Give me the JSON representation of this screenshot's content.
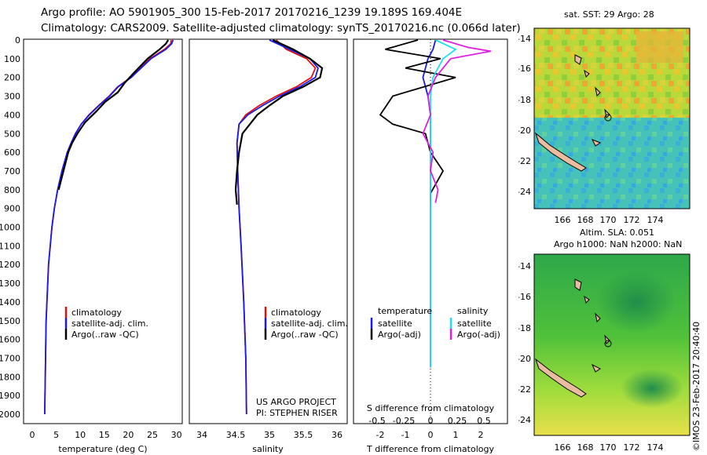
{
  "header": {
    "line1": "Argo profile: AO 5901905_300 15-Feb-2017 20170216_1239 19.189S 169.404E",
    "line2": "Climatology: CARS2009. Satellite-adjusted climatology: synTS_20170216.nc (0.066d later)"
  },
  "maps": {
    "sst_title": "sat. SST: 29 Argo: 28",
    "sla_title1": "Altim. SLA: 0.051",
    "sla_title2": "Argo h1000: NaN h2000: NaN",
    "credit": "©IMOS 23-Feb-2017 20:40:40",
    "lat_ticks": [
      "-14",
      "-16",
      "-18",
      "-20",
      "-22",
      "-24"
    ],
    "lon_ticks": [
      "166",
      "168",
      "170",
      "172",
      "174"
    ]
  },
  "depth_ticks": [
    "0",
    "100",
    "200",
    "300",
    "400",
    "500",
    "600",
    "700",
    "800",
    "900",
    "1000",
    "1100",
    "1200",
    "1300",
    "1400",
    "1500",
    "1600",
    "1700",
    "1800",
    "1900",
    "2000"
  ],
  "colors": {
    "climatology": "#e01010",
    "satellite_adj": "#1a1aee",
    "argo": "#000000",
    "sat_salinity": "#22e0f0",
    "argo_salinity": "#e020e0"
  },
  "panels": {
    "temperature": {
      "xlabel": "temperature (deg C)",
      "xticks": [
        "0",
        "5",
        "10",
        "15",
        "20",
        "25",
        "30"
      ],
      "legend": [
        "climatology",
        "satellite-adj. clim.",
        "Argo(..raw -QC)"
      ]
    },
    "salinity": {
      "xlabel": "salinity",
      "xticks": [
        "34",
        "34.5",
        "35",
        "35.5",
        "36"
      ],
      "legend": [
        "climatology",
        "satellite-adj. clim.",
        "Argo(..raw -QC)"
      ],
      "note1": "US ARGO PROJECT",
      "note2": "PI: STEPHEN RISER"
    },
    "difference": {
      "legend_head_t": "temperature",
      "legend_head_s": "salinity",
      "legend_t": [
        "satellite",
        "Argo(-adj)"
      ],
      "legend_s": [
        "satellite",
        "Argo(-adj)"
      ],
      "s_label": "S difference from climatology",
      "s_ticks": [
        "-0.5",
        "-0.25",
        "0",
        "0.25",
        "0.5"
      ],
      "t_label": "T difference from climatology",
      "t_ticks": [
        "-2",
        "-1",
        "0",
        "1",
        "2"
      ]
    }
  },
  "chart_data": [
    {
      "type": "line",
      "xlabel": "temperature (deg C)",
      "xlim": [
        -2,
        31
      ],
      "ylim": [
        2000,
        0
      ],
      "series": [
        {
          "name": "climatology",
          "x": [
            28.9,
            28.8,
            27.5,
            24.5,
            20.5,
            17.8,
            16,
            13.8,
            11.8,
            10.2,
            9.0,
            8.1,
            7.3,
            6.2,
            5.3,
            4.6,
            4.1,
            3.4,
            2.9,
            2.6
          ],
          "y": [
            0,
            20,
            50,
            100,
            200,
            250,
            300,
            350,
            400,
            450,
            500,
            550,
            600,
            700,
            800,
            900,
            1000,
            1200,
            1500,
            2000
          ]
        },
        {
          "name": "satellite-adj. clim.",
          "x": [
            29.3,
            29.0,
            27.8,
            24.7,
            20.6,
            17.9,
            16.1,
            13.9,
            11.9,
            10.2,
            9.0,
            8.1,
            7.3,
            6.2,
            5.3,
            4.6,
            4.1,
            3.4,
            2.9,
            2.6
          ],
          "y": [
            0,
            20,
            50,
            100,
            200,
            250,
            300,
            350,
            400,
            450,
            500,
            550,
            600,
            700,
            800,
            900,
            1000,
            1200,
            1500,
            2000
          ]
        },
        {
          "name": "Argo(..raw -QC)",
          "x": [
            28.3,
            27.8,
            26.5,
            24.0,
            21.0,
            19.2,
            17.8,
            15.2,
            13.4,
            11.0,
            9.4,
            8.3,
            7.5,
            6.5,
            5.5
          ],
          "y": [
            0,
            20,
            50,
            100,
            180,
            230,
            280,
            330,
            380,
            440,
            500,
            550,
            600,
            700,
            800
          ]
        }
      ]
    },
    {
      "type": "line",
      "xlabel": "salinity",
      "xlim": [
        33.7,
        36.1
      ],
      "ylim": [
        2000,
        0
      ],
      "series": [
        {
          "name": "climatology",
          "x": [
            35.1,
            35.25,
            35.55,
            35.68,
            35.62,
            35.4,
            35.1,
            34.85,
            34.65,
            34.55,
            34.52,
            34.53,
            34.55,
            34.58,
            34.62,
            34.65,
            34.66
          ],
          "y": [
            0,
            50,
            100,
            150,
            200,
            250,
            300,
            350,
            400,
            450,
            550,
            700,
            900,
            1100,
            1400,
            1700,
            2000
          ]
        },
        {
          "name": "satellite-adj. clim.",
          "x": [
            35.0,
            35.3,
            35.6,
            35.72,
            35.68,
            35.45,
            35.15,
            34.9,
            34.68,
            34.55,
            34.52,
            34.53,
            34.55,
            34.58,
            34.62,
            34.65,
            34.66
          ],
          "y": [
            0,
            50,
            100,
            150,
            200,
            250,
            300,
            350,
            400,
            450,
            550,
            700,
            900,
            1100,
            1400,
            1700,
            2000
          ]
        },
        {
          "name": "Argo(..raw -QC)",
          "x": [
            35.05,
            35.35,
            35.6,
            35.78,
            35.75,
            35.5,
            35.2,
            35.0,
            34.82,
            34.6,
            34.55,
            34.52,
            34.5,
            34.52
          ],
          "y": [
            0,
            50,
            100,
            150,
            200,
            250,
            300,
            350,
            400,
            500,
            600,
            700,
            800,
            880
          ]
        }
      ]
    },
    {
      "type": "line",
      "xlabel": "T difference from climatology",
      "xlim": [
        -2.7,
        2.7
      ],
      "ylim": [
        2000,
        0
      ],
      "series": [
        {
          "name": "temperature satellite",
          "x": [
            0.2,
            0.1,
            -0.1,
            -0.3,
            -0.1,
            0.0,
            0.0,
            0.0,
            0.0,
            0.0,
            0.0
          ],
          "y": [
            0,
            50,
            100,
            200,
            300,
            400,
            600,
            800,
            1200,
            1600,
            1750
          ]
        },
        {
          "name": "temperature Argo(-adj)",
          "x": [
            -0.5,
            -1.8,
            0.4,
            -1.0,
            1.0,
            -1.5,
            -2.0,
            -1.5,
            -0.2,
            0.0,
            0.5,
            0.0,
            0.0
          ],
          "y": [
            0,
            50,
            100,
            150,
            200,
            300,
            400,
            450,
            500,
            600,
            700,
            820,
            870
          ]
        },
        {
          "name": "salinity satellite",
          "x": [
            0.2,
            1.0,
            0.5,
            0.1,
            0.0,
            0.0,
            0.0,
            0.0,
            0.0,
            0.0
          ],
          "y": [
            0,
            50,
            100,
            200,
            300,
            500,
            800,
            1200,
            1600,
            1750
          ]
        },
        {
          "name": "salinity Argo(-adj)",
          "x": [
            0.5,
            1.5,
            2.4,
            0.8,
            0.2,
            -0.1,
            0.0,
            -0.3,
            0.1,
            0.0,
            0.3,
            0.2
          ],
          "y": [
            0,
            40,
            60,
            100,
            200,
            300,
            400,
            500,
            600,
            700,
            800,
            870
          ]
        }
      ]
    }
  ]
}
